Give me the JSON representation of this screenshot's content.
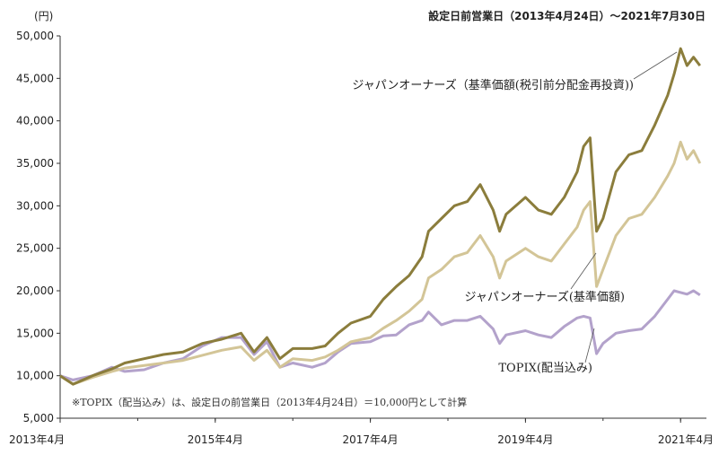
{
  "header": {
    "unit": "(円)",
    "period": "設定日前営業日（2013年4月24日）～2021年7月30日"
  },
  "note": "※TOPIX（配当込み）は、設定日の前営業日（2013年4月24日）＝10,000円として計算",
  "chart_data": {
    "type": "line",
    "ylim": [
      5000,
      50000
    ],
    "xlim": [
      "2013-04",
      "2021-08"
    ],
    "y_ticks": [
      5000,
      10000,
      15000,
      20000,
      25000,
      30000,
      35000,
      40000,
      45000,
      50000
    ],
    "y_tick_labels": [
      "5,000",
      "10,000",
      "15,000",
      "20,000",
      "25,000",
      "30,000",
      "35,000",
      "40,000",
      "45,000",
      "50,000"
    ],
    "x_ticks": [
      "2013-04",
      "2015-04",
      "2017-04",
      "2019-04",
      "2021-04"
    ],
    "x_tick_labels": [
      "2013年4月",
      "2015年4月",
      "2017年4月",
      "2019年4月",
      "2021年4月"
    ],
    "grid": false,
    "series": [
      {
        "name": "ジャパンオーナーズ（基準価額(税引前分配金再投資))",
        "color": "#8b7d3c",
        "points": [
          [
            "2013-04",
            10000
          ],
          [
            "2013-06",
            9000
          ],
          [
            "2013-09",
            10000
          ],
          [
            "2013-12",
            10800
          ],
          [
            "2014-02",
            11500
          ],
          [
            "2014-05",
            12000
          ],
          [
            "2014-08",
            12500
          ],
          [
            "2014-11",
            12800
          ],
          [
            "2015-02",
            13800
          ],
          [
            "2015-05",
            14300
          ],
          [
            "2015-08",
            15000
          ],
          [
            "2015-10",
            12800
          ],
          [
            "2015-12",
            14500
          ],
          [
            "2016-02",
            12000
          ],
          [
            "2016-04",
            13200
          ],
          [
            "2016-07",
            13200
          ],
          [
            "2016-09",
            13500
          ],
          [
            "2016-11",
            15000
          ],
          [
            "2017-01",
            16200
          ],
          [
            "2017-04",
            17000
          ],
          [
            "2017-06",
            19000
          ],
          [
            "2017-08",
            20500
          ],
          [
            "2017-10",
            21800
          ],
          [
            "2017-12",
            24000
          ],
          [
            "2018-01",
            27000
          ],
          [
            "2018-03",
            28500
          ],
          [
            "2018-05",
            30000
          ],
          [
            "2018-07",
            30500
          ],
          [
            "2018-09",
            32500
          ],
          [
            "2018-11",
            29500
          ],
          [
            "2018-12",
            27000
          ],
          [
            "2019-01",
            29000
          ],
          [
            "2019-04",
            31000
          ],
          [
            "2019-06",
            29500
          ],
          [
            "2019-08",
            29000
          ],
          [
            "2019-10",
            31000
          ],
          [
            "2019-12",
            34000
          ],
          [
            "2020-01",
            37000
          ],
          [
            "2020-02",
            38000
          ],
          [
            "2020-03",
            27000
          ],
          [
            "2020-04",
            28500
          ],
          [
            "2020-06",
            34000
          ],
          [
            "2020-08",
            36000
          ],
          [
            "2020-10",
            36500
          ],
          [
            "2020-12",
            39500
          ],
          [
            "2021-02",
            43000
          ],
          [
            "2021-03",
            45500
          ],
          [
            "2021-04",
            48500
          ],
          [
            "2021-05",
            46500
          ],
          [
            "2021-06",
            47500
          ],
          [
            "2021-07",
            46500
          ]
        ]
      },
      {
        "name": "ジャパンオーナーズ(基準価額)",
        "color": "#d3c597",
        "points": [
          [
            "2013-04",
            10000
          ],
          [
            "2013-06",
            9000
          ],
          [
            "2013-09",
            9800
          ],
          [
            "2013-12",
            10500
          ],
          [
            "2014-02",
            10900
          ],
          [
            "2014-05",
            11200
          ],
          [
            "2014-08",
            11500
          ],
          [
            "2014-11",
            11800
          ],
          [
            "2015-02",
            12400
          ],
          [
            "2015-05",
            13000
          ],
          [
            "2015-08",
            13400
          ],
          [
            "2015-10",
            11800
          ],
          [
            "2015-12",
            13000
          ],
          [
            "2016-02",
            11000
          ],
          [
            "2016-04",
            12000
          ],
          [
            "2016-07",
            11800
          ],
          [
            "2016-09",
            12200
          ],
          [
            "2016-11",
            13000
          ],
          [
            "2017-01",
            14000
          ],
          [
            "2017-04",
            14500
          ],
          [
            "2017-06",
            15600
          ],
          [
            "2017-08",
            16500
          ],
          [
            "2017-10",
            17600
          ],
          [
            "2017-12",
            19000
          ],
          [
            "2018-01",
            21500
          ],
          [
            "2018-03",
            22500
          ],
          [
            "2018-05",
            24000
          ],
          [
            "2018-07",
            24500
          ],
          [
            "2018-09",
            26500
          ],
          [
            "2018-11",
            24000
          ],
          [
            "2018-12",
            21500
          ],
          [
            "2019-01",
            23500
          ],
          [
            "2019-04",
            25000
          ],
          [
            "2019-06",
            24000
          ],
          [
            "2019-08",
            23500
          ],
          [
            "2019-10",
            25500
          ],
          [
            "2019-12",
            27500
          ],
          [
            "2020-01",
            29500
          ],
          [
            "2020-02",
            30500
          ],
          [
            "2020-03",
            20500
          ],
          [
            "2020-04",
            22500
          ],
          [
            "2020-06",
            26500
          ],
          [
            "2020-08",
            28500
          ],
          [
            "2020-10",
            29000
          ],
          [
            "2020-12",
            31000
          ],
          [
            "2021-02",
            33500
          ],
          [
            "2021-03",
            35000
          ],
          [
            "2021-04",
            37500
          ],
          [
            "2021-05",
            35500
          ],
          [
            "2021-06",
            36500
          ],
          [
            "2021-07",
            35000
          ]
        ]
      },
      {
        "name": "TOPIX(配当込み)",
        "color": "#b3a2cb",
        "points": [
          [
            "2013-04",
            10000
          ],
          [
            "2013-06",
            9500
          ],
          [
            "2013-09",
            10000
          ],
          [
            "2013-12",
            11000
          ],
          [
            "2014-02",
            10500
          ],
          [
            "2014-05",
            10700
          ],
          [
            "2014-08",
            11500
          ],
          [
            "2014-11",
            12000
          ],
          [
            "2015-02",
            13500
          ],
          [
            "2015-05",
            14500
          ],
          [
            "2015-08",
            14500
          ],
          [
            "2015-10",
            12500
          ],
          [
            "2015-12",
            14000
          ],
          [
            "2016-02",
            11000
          ],
          [
            "2016-04",
            11500
          ],
          [
            "2016-07",
            11000
          ],
          [
            "2016-09",
            11500
          ],
          [
            "2016-11",
            12800
          ],
          [
            "2017-01",
            13800
          ],
          [
            "2017-04",
            14000
          ],
          [
            "2017-06",
            14700
          ],
          [
            "2017-08",
            14800
          ],
          [
            "2017-10",
            16000
          ],
          [
            "2017-12",
            16500
          ],
          [
            "2018-01",
            17500
          ],
          [
            "2018-03",
            16000
          ],
          [
            "2018-05",
            16500
          ],
          [
            "2018-07",
            16500
          ],
          [
            "2018-09",
            17000
          ],
          [
            "2018-11",
            15500
          ],
          [
            "2018-12",
            13800
          ],
          [
            "2019-01",
            14800
          ],
          [
            "2019-04",
            15300
          ],
          [
            "2019-06",
            14800
          ],
          [
            "2019-08",
            14500
          ],
          [
            "2019-10",
            15800
          ],
          [
            "2019-12",
            16800
          ],
          [
            "2020-01",
            17000
          ],
          [
            "2020-02",
            16800
          ],
          [
            "2020-03",
            12600
          ],
          [
            "2020-04",
            13800
          ],
          [
            "2020-06",
            15000
          ],
          [
            "2020-08",
            15300
          ],
          [
            "2020-10",
            15500
          ],
          [
            "2020-12",
            17000
          ],
          [
            "2021-02",
            19000
          ],
          [
            "2021-03",
            20000
          ],
          [
            "2021-04",
            19800
          ],
          [
            "2021-05",
            19600
          ],
          [
            "2021-06",
            20000
          ],
          [
            "2021-07",
            19500
          ]
        ]
      }
    ],
    "annotations": {
      "dark_label": "ジャパンオーナーズ（基準価額(税引前分配金再投資))",
      "light_label": "ジャパンオーナーズ(基準価額)",
      "topix_label": "TOPIX(配当込み)"
    }
  }
}
